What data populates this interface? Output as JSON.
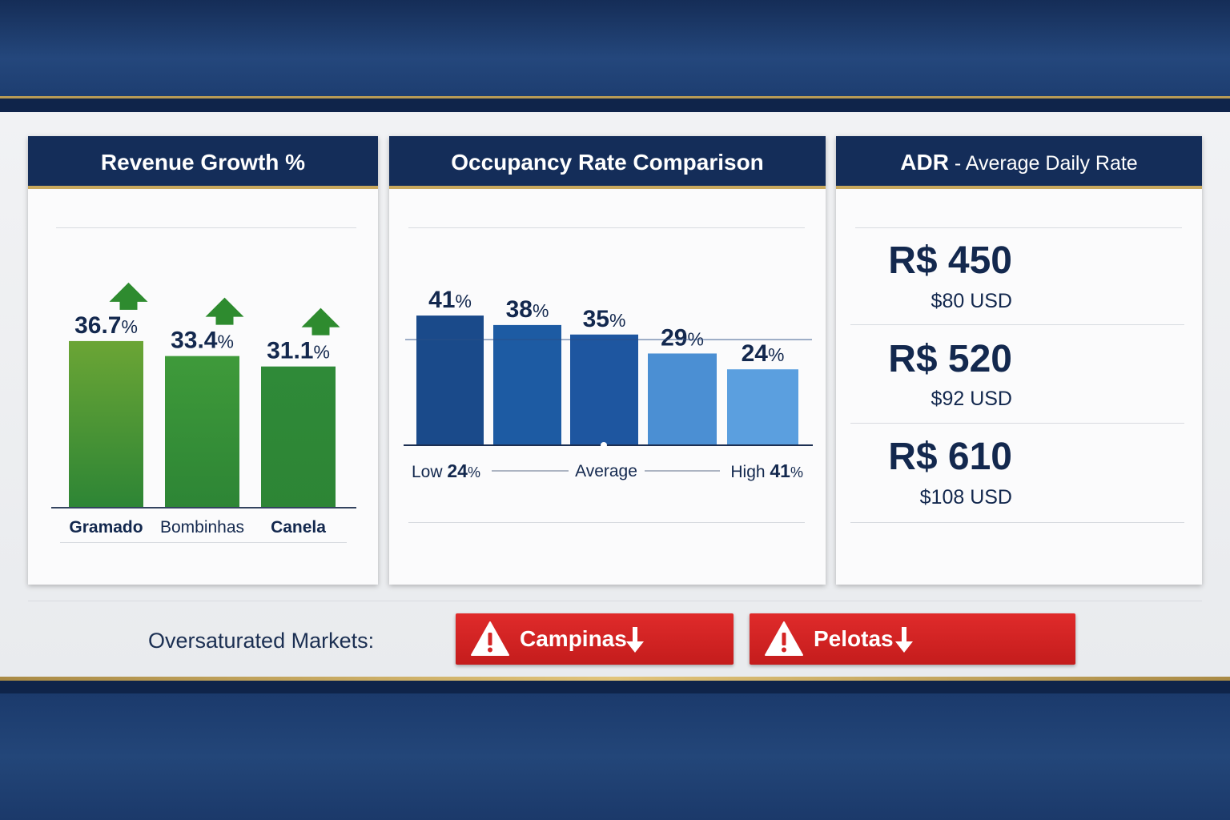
{
  "panels": {
    "revenue": {
      "title": "Revenue Growth %"
    },
    "occupancy": {
      "title": "Occupancy Rate Comparison",
      "low_label": "Low",
      "low_value": "24",
      "average_label": "Average",
      "high_label": "High",
      "high_value": "41",
      "pct": "%"
    },
    "adr": {
      "title_main": "ADR",
      "title_rest": " - Average Daily Rate",
      "items": [
        {
          "brl": "R$ 450",
          "usd": "$80 USD"
        },
        {
          "brl": "R$ 520",
          "usd": "$92 USD"
        },
        {
          "brl": "R$ 610",
          "usd": "$108 USD"
        }
      ]
    }
  },
  "chart_data": [
    {
      "type": "bar",
      "title": "Revenue Growth %",
      "categories": [
        "Gramado",
        "Bombinhas",
        "Canela"
      ],
      "values": [
        36.7,
        33.4,
        31.1
      ],
      "value_labels": [
        "36.7",
        "33.4",
        "31.1"
      ],
      "unit": "%",
      "trend": "up",
      "colors": [
        "#6ba535",
        "#3f9a3a",
        "#2f8a38"
      ]
    },
    {
      "type": "bar",
      "title": "Occupancy Rate Comparison",
      "values": [
        41,
        38,
        35,
        29,
        24
      ],
      "value_labels": [
        "41",
        "38",
        "35",
        "29",
        "24"
      ],
      "unit": "%",
      "average_line": 33.4,
      "colors": [
        "#1a4a8a",
        "#1d5ba3",
        "#1e56a0",
        "#4b8fd3",
        "#5b9fdf"
      ]
    }
  ],
  "oversaturated": {
    "label": "Oversaturated Markets:",
    "markets": [
      "Campinas",
      "Pelotas"
    ],
    "color": "#d42525"
  }
}
